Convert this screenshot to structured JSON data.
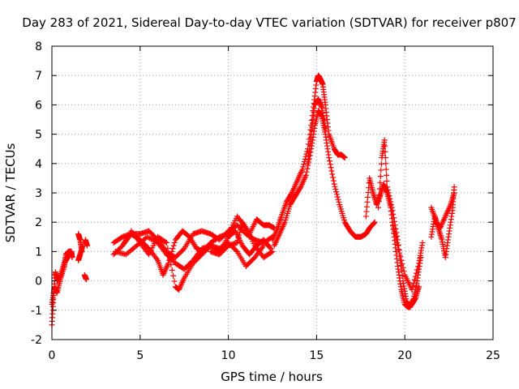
{
  "chart_data": {
    "type": "scatter",
    "title": "Day 283 of 2021, Sidereal Day-to-day VTEC variation (SDTVAR) for receiver p807",
    "xlabel": "GPS time / hours",
    "ylabel": "SDTVAR / TECUs",
    "xlim": [
      0,
      25
    ],
    "ylim": [
      -2,
      8
    ],
    "xticks": [
      0,
      5,
      10,
      15,
      20,
      25
    ],
    "yticks": [
      -2,
      -1,
      0,
      1,
      2,
      3,
      4,
      5,
      6,
      7,
      8
    ],
    "grid": true,
    "marker": "plus",
    "color": "#ff0000",
    "series": [
      {
        "name": "seg-early-1",
        "x": [
          0.0,
          0.1,
          0.2,
          0.3,
          0.5,
          0.7,
          0.9,
          1.0,
          1.1,
          1.15
        ],
        "y": [
          -1.5,
          -0.5,
          0.3,
          0.0,
          0.2,
          0.6,
          0.8,
          1.0,
          1.0,
          0.8
        ]
      },
      {
        "name": "seg-early-2",
        "x": [
          0.0,
          0.15,
          0.3,
          0.5,
          0.7,
          0.8,
          0.95
        ],
        "y": [
          -0.8,
          -0.2,
          -0.4,
          0.1,
          0.5,
          0.9,
          1.0
        ]
      },
      {
        "name": "seg-early-3",
        "x": [
          1.5,
          1.6,
          1.7
        ],
        "y": [
          1.6,
          1.4,
          1.0
        ]
      },
      {
        "name": "seg-early-4",
        "x": [
          1.5,
          1.6,
          1.75
        ],
        "y": [
          0.7,
          0.9,
          1.2
        ]
      },
      {
        "name": "seg-early-5",
        "x": [
          1.9,
          2.0
        ],
        "y": [
          1.4,
          1.2
        ]
      },
      {
        "name": "seg-early-6",
        "x": [
          1.85,
          1.95
        ],
        "y": [
          0.2,
          0.05
        ]
      },
      {
        "name": "seg-a",
        "x": [
          3.5,
          4.0,
          4.5,
          5.0,
          5.5,
          6.0,
          6.5,
          7.0,
          7.5,
          8.0,
          8.5,
          9.0,
          9.5,
          10.0,
          10.5,
          11.0,
          11.5,
          12.0,
          12.5
        ],
        "y": [
          1.3,
          1.5,
          1.6,
          1.6,
          1.7,
          1.4,
          1.0,
          0.8,
          1.1,
          1.6,
          1.7,
          1.6,
          1.4,
          1.7,
          1.9,
          1.6,
          1.4,
          1.3,
          1.5
        ]
      },
      {
        "name": "seg-b",
        "x": [
          3.5,
          4.0,
          4.5,
          5.0,
          5.5,
          6.0,
          6.3,
          6.6,
          7.0,
          7.4,
          7.8,
          8.2,
          8.6,
          9.0,
          9.5,
          10.0,
          10.5,
          11.0,
          11.5,
          12.0,
          12.5
        ],
        "y": [
          0.9,
          1.2,
          1.6,
          1.4,
          1.1,
          0.7,
          0.2,
          0.6,
          1.4,
          1.7,
          1.5,
          1.1,
          1.0,
          1.3,
          1.5,
          1.6,
          2.2,
          1.8,
          1.2,
          0.8,
          1.0
        ]
      },
      {
        "name": "seg-c",
        "x": [
          4.0,
          4.5,
          5.0,
          5.5,
          6.0,
          6.5,
          7.0,
          7.2,
          7.5,
          8.0,
          8.5,
          9.0,
          9.5,
          10.0,
          10.5,
          11.0,
          11.5,
          12.0
        ],
        "y": [
          1.2,
          1.7,
          1.3,
          0.9,
          1.5,
          1.3,
          -0.2,
          -0.3,
          0.1,
          0.6,
          0.9,
          1.2,
          1.1,
          1.3,
          1.0,
          0.5,
          0.8,
          1.2
        ]
      },
      {
        "name": "seg-d",
        "x": [
          3.6,
          4.2,
          4.8,
          5.4,
          6.0,
          6.5,
          7.0,
          7.5,
          8.0,
          8.5,
          9.0,
          9.5,
          10.0,
          10.4,
          10.8,
          11.2,
          11.6,
          12.0,
          12.4
        ],
        "y": [
          1.0,
          0.9,
          1.2,
          1.5,
          1.3,
          0.9,
          0.6,
          0.4,
          0.7,
          1.1,
          1.2,
          1.0,
          1.5,
          1.7,
          1.2,
          0.9,
          1.2,
          1.4,
          1.1
        ]
      },
      {
        "name": "seg-e",
        "x": [
          9.0,
          9.5,
          10.0,
          10.5,
          10.8,
          11.2,
          11.6,
          12.0,
          12.3,
          12.6
        ],
        "y": [
          1.0,
          0.9,
          1.2,
          1.3,
          2.0,
          1.6,
          2.1,
          1.9,
          1.9,
          1.8
        ]
      },
      {
        "name": "seg-f",
        "x": [
          12.5,
          12.8,
          13.0,
          13.3,
          13.6,
          13.9,
          14.2,
          14.5,
          14.8,
          15.0,
          15.1,
          15.2,
          15.35,
          15.5,
          15.7,
          16.0,
          16.2,
          16.4,
          16.6
        ],
        "y": [
          1.4,
          1.8,
          2.2,
          2.7,
          3.0,
          3.4,
          3.8,
          4.5,
          5.8,
          6.8,
          7.0,
          6.9,
          6.7,
          6.0,
          5.0,
          4.5,
          4.3,
          4.3,
          4.2
        ]
      },
      {
        "name": "seg-g",
        "x": [
          12.6,
          12.9,
          13.2,
          13.5,
          13.8,
          14.1,
          14.4,
          14.7,
          14.9,
          15.1,
          15.3,
          15.5,
          15.7,
          16.0,
          16.3,
          16.6,
          16.9,
          17.2,
          17.5,
          17.8,
          18.0,
          18.3
        ],
        "y": [
          1.2,
          1.6,
          2.0,
          2.6,
          2.9,
          3.2,
          3.6,
          4.5,
          5.3,
          5.8,
          5.6,
          5.0,
          4.2,
          3.3,
          2.6,
          2.0,
          1.7,
          1.5,
          1.5,
          1.6,
          1.8,
          2.0
        ]
      },
      {
        "name": "seg-h",
        "x": [
          14.5,
          14.7,
          14.9,
          15.1,
          15.3,
          15.5
        ],
        "y": [
          4.0,
          5.0,
          6.0,
          6.2,
          5.9,
          5.2
        ]
      },
      {
        "name": "seg-i",
        "x": [
          17.8,
          18.0,
          18.2,
          18.4,
          18.6,
          18.8,
          19.0,
          19.2,
          19.4,
          19.6,
          19.8,
          20.0,
          20.2,
          20.4,
          20.6,
          20.8
        ],
        "y": [
          2.2,
          3.5,
          3.0,
          2.6,
          2.9,
          3.3,
          3.0,
          2.5,
          1.5,
          0.5,
          -0.3,
          -0.8,
          -0.9,
          -0.8,
          -0.6,
          -0.2
        ]
      },
      {
        "name": "seg-j",
        "x": [
          18.5,
          18.7,
          18.85,
          19.0,
          19.3,
          19.6,
          19.9,
          20.1,
          20.3,
          20.5,
          20.7,
          20.9
        ],
        "y": [
          2.5,
          4.2,
          4.8,
          3.2,
          2.4,
          1.4,
          0.0,
          -0.7,
          -0.9,
          -0.6,
          0.0,
          0.8
        ]
      },
      {
        "name": "seg-k",
        "x": [
          19.3,
          19.6,
          20.0,
          20.4,
          20.8,
          21.0
        ],
        "y": [
          2.0,
          1.2,
          0.2,
          -0.3,
          0.6,
          1.3
        ]
      },
      {
        "name": "seg-l",
        "x": [
          21.5,
          21.7,
          21.9,
          22.1,
          22.3,
          22.5,
          22.7,
          22.8
        ],
        "y": [
          1.5,
          2.2,
          1.8,
          1.4,
          0.8,
          1.6,
          2.4,
          3.2
        ]
      },
      {
        "name": "seg-m",
        "x": [
          21.5,
          21.8,
          22.0,
          22.3,
          22.6,
          22.8
        ],
        "y": [
          2.5,
          2.0,
          1.8,
          2.2,
          2.6,
          3.0
        ]
      }
    ]
  }
}
